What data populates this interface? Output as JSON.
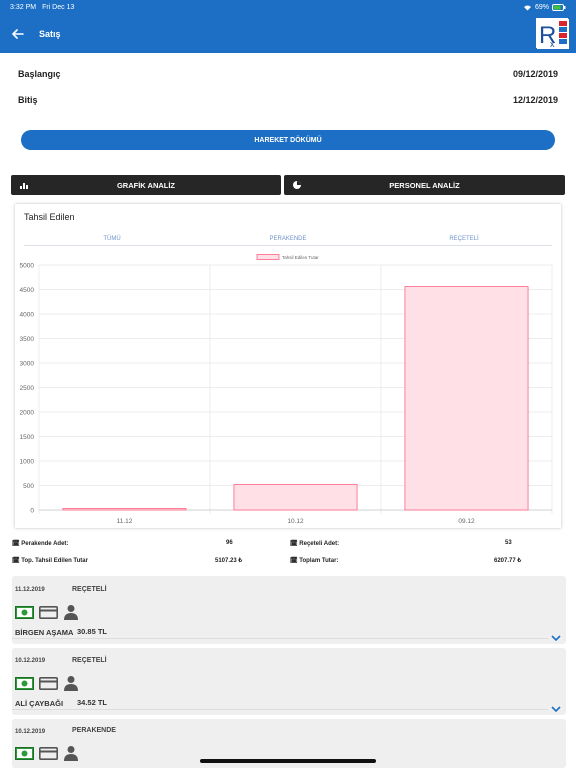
{
  "status": {
    "time": "3:32 PM",
    "date": "Fri Dec 13",
    "battery": "69%"
  },
  "header": {
    "title": "Satış",
    "logo_letters": "R",
    "logo_small": "x",
    "logo_side": [
      "E",
      "V",
      "S",
      "C"
    ]
  },
  "range": {
    "start_label": "Başlangıç",
    "start_value": "09/12/2019",
    "end_label": "Bitiş",
    "end_value": "12/12/2019"
  },
  "buttons": {
    "hareket": "HAREKET DÖKÜMÜ",
    "grafik": "GRAFİK ANALİZ",
    "personel": "PERSONEL ANALİZ"
  },
  "chart_card": {
    "title": "Tahsil Edilen",
    "tabs": [
      "TÜMÜ",
      "PERAKENDE",
      "REÇETELİ"
    ]
  },
  "chart_data": {
    "type": "bar",
    "categories": [
      "11.12",
      "10.12",
      "09.12"
    ],
    "series": [
      {
        "name": "Tahsil Edilen Tutar",
        "values": [
          30.85,
          520,
          4560
        ]
      }
    ],
    "ylim": [
      0,
      5000
    ],
    "yticks": [
      "5000",
      "4500",
      "4000",
      "3500",
      "3000",
      "2500",
      "2000",
      "1500",
      "1000",
      "500",
      "0"
    ],
    "legend": "top-center",
    "grid": true,
    "bar_color": "#ffe0e6",
    "bar_border": "#ff6384"
  },
  "summary": {
    "perakende_label": "Perakende Adet:",
    "perakende_value": "96",
    "receteli_label": "Reçeteli Adet:",
    "receteli_value": "53",
    "tahsil_label": "Top. Tahsil Edilen Tutar",
    "tahsil_value": "5107.23 ₺",
    "toplam_label": "Toplam Tutar:",
    "toplam_value": "6207.77 ₺"
  },
  "list": [
    {
      "date": "11.12.2019",
      "type": "REÇETELİ",
      "name": "BİRGEN AŞAMA",
      "amount": "30.85 TL"
    },
    {
      "date": "10.12.2019",
      "type": "REÇETELİ",
      "name": "ALİ ÇAYBAĞI",
      "amount": "34.52 TL"
    },
    {
      "date": "10.12.2019",
      "type": "PERAKENDE",
      "name": "",
      "amount": ""
    }
  ],
  "colors": {
    "primary": "#1c6fc5",
    "dark": "#262626",
    "money_green": "#2e9b3a"
  }
}
